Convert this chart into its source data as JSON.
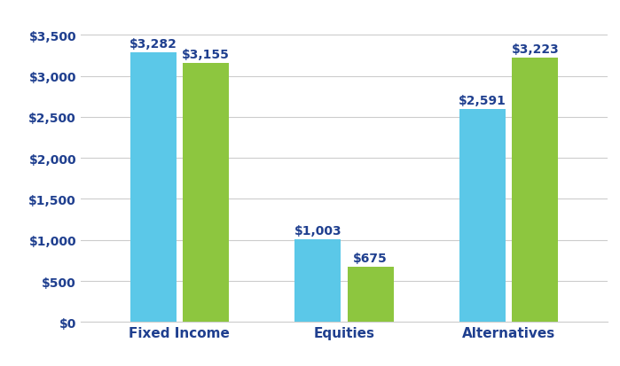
{
  "categories": [
    "Fixed Income",
    "Equities",
    "Alternatives"
  ],
  "values_2021": [
    3282,
    1003,
    2591
  ],
  "values_2022": [
    3155,
    675,
    3223
  ],
  "labels_2021": [
    "$3,282",
    "$1,003",
    "$2,591"
  ],
  "labels_2022": [
    "$3,155",
    "$675",
    "$3,223"
  ],
  "color_2021": "#5BC8E8",
  "color_2022": "#8DC63F",
  "label_color": "#1F3F8F",
  "xlabel_color": "#1F3F8F",
  "ylabel_ticks": [
    0,
    500,
    1000,
    1500,
    2000,
    2500,
    3000,
    3500
  ],
  "ytick_labels": [
    "$0",
    "$500",
    "$1,000",
    "$1,500",
    "$2,000",
    "$2,500",
    "$3,000",
    "$3,500"
  ],
  "ylim": [
    0,
    3800
  ],
  "bar_width": 0.28,
  "bar_gap": 0.04,
  "background_color": "#ffffff",
  "grid_color": "#cccccc",
  "label_fontsize": 10,
  "tick_fontsize": 10,
  "category_fontsize": 11
}
